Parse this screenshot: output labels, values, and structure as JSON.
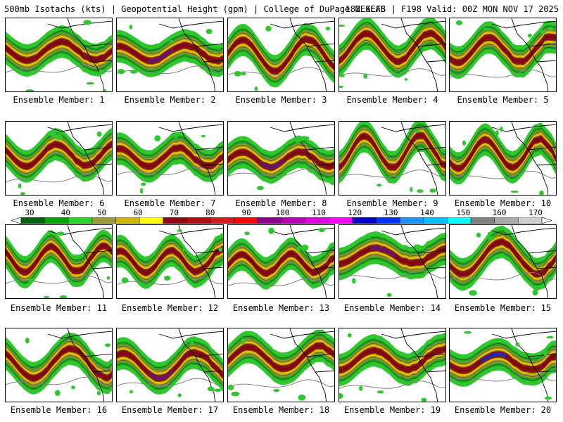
{
  "header": {
    "left": "500mb Isotachs (kts) | Geopotential Height (gpm) | College of DuPage NEXLAB",
    "right": "18Z GEFS | F198 Valid: 00Z MON NOV 17 2025"
  },
  "members": [
    "Ensemble Member: 1",
    "Ensemble Member: 2",
    "Ensemble Member: 3",
    "Ensemble Member: 4",
    "Ensemble Member: 5",
    "Ensemble Member: 6",
    "Ensemble Member: 7",
    "Ensemble Member: 8",
    "Ensemble Member: 9",
    "Ensemble Member: 10",
    "Ensemble Member: 11",
    "Ensemble Member: 12",
    "Ensemble Member: 13",
    "Ensemble Member: 14",
    "Ensemble Member: 15",
    "Ensemble Member: 16",
    "Ensemble Member: 17",
    "Ensemble Member: 18",
    "Ensemble Member: 19",
    "Ensemble Member: 20"
  ],
  "colorbar": {
    "labels": [
      "30",
      "40",
      "50",
      "60",
      "70",
      "80",
      "90",
      "100",
      "110",
      "120",
      "130",
      "140",
      "150",
      "160",
      "170"
    ],
    "colors": [
      "#00640a",
      "#00a000",
      "#2ad22a",
      "#a09640",
      "#d2b400",
      "#ffff00",
      "#8b0a14",
      "#b01010",
      "#d21c1c",
      "#ff0000",
      "#8c008c",
      "#b400b4",
      "#dc00dc",
      "#ff00ff",
      "#0000c8",
      "#0032ff",
      "#1e90ff",
      "#00bfff",
      "#00ffff",
      "#808080",
      "#a8a8a8",
      "#d0d0d0"
    ]
  },
  "palette": {
    "green_dark": "#1e8c1e",
    "green": "#2ec82e",
    "olive": "#a0962d",
    "yellow": "#e6c800",
    "maroon": "#8b0a14",
    "purple": "#6a1a7a",
    "blue": "#2030c0",
    "border": "#000000",
    "height_contour": "#808080"
  }
}
